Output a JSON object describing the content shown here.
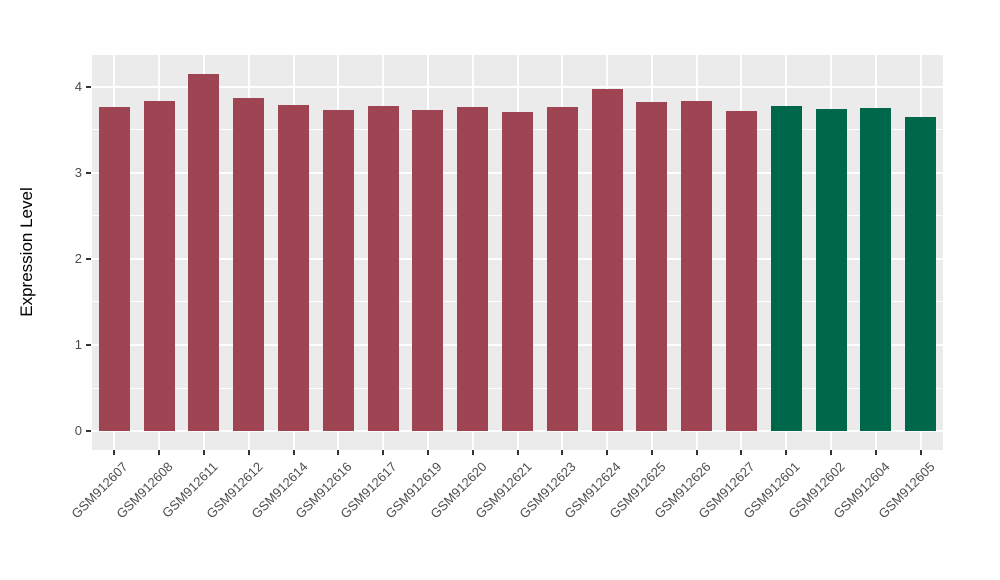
{
  "chart_data": {
    "type": "bar",
    "title": "",
    "xlabel": "",
    "ylabel": "Expression Level",
    "categories": [
      "GSM912607",
      "GSM912608",
      "GSM912611",
      "GSM912612",
      "GSM912614",
      "GSM912616",
      "GSM912617",
      "GSM912619",
      "GSM912620",
      "GSM912621",
      "GSM912623",
      "GSM912624",
      "GSM912625",
      "GSM912626",
      "GSM912627",
      "GSM912601",
      "GSM912602",
      "GSM912604",
      "GSM912605"
    ],
    "values": [
      3.76,
      3.84,
      4.15,
      3.87,
      3.79,
      3.73,
      3.78,
      3.73,
      3.76,
      3.71,
      3.76,
      3.97,
      3.82,
      3.84,
      3.72,
      3.78,
      3.74,
      3.75,
      3.65
    ],
    "bar_colors": [
      "#9E4452",
      "#9E4452",
      "#9E4452",
      "#9E4452",
      "#9E4452",
      "#9E4452",
      "#9E4452",
      "#9E4452",
      "#9E4452",
      "#9E4452",
      "#9E4452",
      "#9E4452",
      "#9E4452",
      "#9E4452",
      "#9E4452",
      "#00684A",
      "#00684A",
      "#00684A",
      "#00684A"
    ],
    "ylim": [
      -0.22,
      4.37
    ],
    "yticks": [
      0,
      1,
      2,
      3,
      4
    ],
    "ytick_labels": [
      "0",
      "1",
      "2",
      "3",
      "4"
    ],
    "minor_yticks": [
      0.5,
      1.5,
      2.5,
      3.5
    ],
    "legend": "none",
    "grid": "on",
    "colors": {
      "bar_red": "#9E4452",
      "bar_green": "#00684A",
      "panel_background": "#EBEBEB",
      "gridline": "#FFFFFF",
      "axis_text": "#4D4D4D",
      "axis_title": "#000000",
      "tick_mark": "#333333",
      "figure_background": "#FFFFFF"
    }
  }
}
